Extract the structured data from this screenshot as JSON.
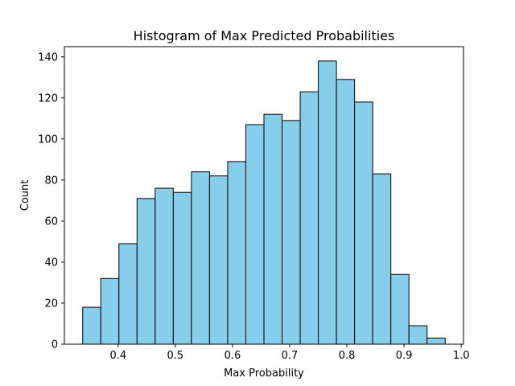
{
  "chart_data": {
    "type": "bar",
    "title": "Histogram of Max Predicted Probabilities",
    "xlabel": "Max Probability",
    "ylabel": "Count",
    "bin_edges": [
      0.338,
      0.3697,
      0.4014,
      0.4331,
      0.4648,
      0.4965,
      0.5282,
      0.5599,
      0.5916,
      0.6233,
      0.655,
      0.6867,
      0.7184,
      0.7501,
      0.7818,
      0.8135,
      0.8452,
      0.8769,
      0.9086,
      0.9403,
      0.972
    ],
    "values": [
      18,
      32,
      49,
      71,
      76,
      74,
      84,
      82,
      89,
      107,
      112,
      109,
      123,
      138,
      129,
      118,
      83,
      34,
      9,
      3
    ],
    "xlim": [
      0.306,
      1.004
    ],
    "ylim": [
      0,
      145
    ],
    "xticks": [
      0.4,
      0.5,
      0.6,
      0.7,
      0.8,
      0.9,
      1.0
    ],
    "xtick_labels": [
      "0.4",
      "0.5",
      "0.6",
      "0.7",
      "0.8",
      "0.9",
      "1.0"
    ],
    "yticks": [
      0,
      20,
      40,
      60,
      80,
      100,
      120,
      140
    ],
    "ytick_labels": [
      "0",
      "20",
      "40",
      "60",
      "80",
      "100",
      "120",
      "140"
    ],
    "bar_color": "#87CEEB",
    "edge_color": "#000000",
    "grid": false,
    "legend": "none"
  }
}
